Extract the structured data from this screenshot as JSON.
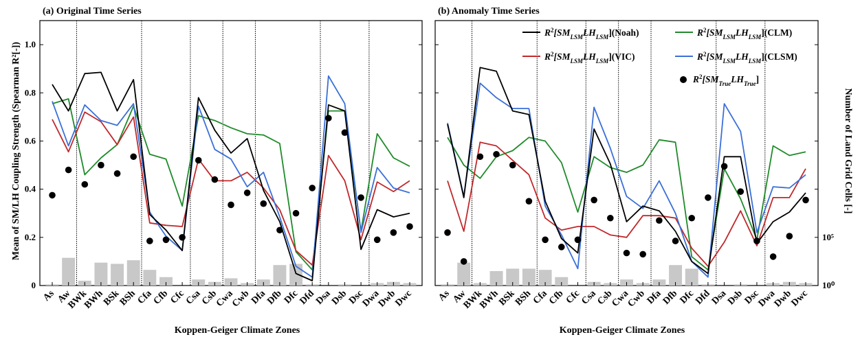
{
  "chart_data": {
    "categories": [
      "As",
      "Aw",
      "BWk",
      "BWh",
      "BSk",
      "BSh",
      "Cfa",
      "Cfb",
      "Cfc",
      "Csa",
      "Csb",
      "Cwa",
      "Cwb",
      "Dfa",
      "Dfb",
      "Dfc",
      "Dfd",
      "Dsa",
      "Dsb",
      "Dsc",
      "Dwa",
      "Dwb",
      "Dwc"
    ],
    "group_separators_after_index": [
      1,
      5,
      8,
      10,
      12,
      16,
      19
    ],
    "xlabel": "Koppen-Geiger Climate Zones",
    "ylabel": "Mean of SM/LH Coupling Strength (Spearman R²[-])",
    "ylabel_right": "Number of Land Grid Cells [-]",
    "y_ticks": [
      "0",
      "0.2",
      "0.4",
      "0.6",
      "0.8",
      "1.0"
    ],
    "ylim": [
      0,
      1.1
    ],
    "right_ticks": [
      "10⁰",
      "10⁵"
    ],
    "series_colors": {
      "noah": "#000000",
      "vic": "#c0282a",
      "clm": "#1f8a2a",
      "clsm": "#3a6fd8",
      "obs": "#000000",
      "bars": "#c8c8c8"
    },
    "panels": [
      {
        "title": "(a) Original Time Series",
        "type": "line",
        "series": [
          {
            "key": "noah",
            "values": [
              0.835,
              0.725,
              0.88,
              0.885,
              0.725,
              0.855,
              0.295,
              0.23,
              0.145,
              0.78,
              0.645,
              0.55,
              0.61,
              0.395,
              0.265,
              0.05,
              0.02,
              0.75,
              0.725,
              0.15,
              0.315,
              0.285,
              0.3
            ]
          },
          {
            "key": "vic",
            "values": [
              0.69,
              0.555,
              0.72,
              0.68,
              0.585,
              0.7,
              0.26,
              0.25,
              0.245,
              0.525,
              0.435,
              0.435,
              0.47,
              0.405,
              0.315,
              0.145,
              0.085,
              0.54,
              0.435,
              0.19,
              0.43,
              0.39,
              0.435
            ]
          },
          {
            "key": "clm",
            "values": [
              0.755,
              0.775,
              0.46,
              0.53,
              0.585,
              0.745,
              0.545,
              0.525,
              0.33,
              0.705,
              0.685,
              0.655,
              0.63,
              0.625,
              0.59,
              0.14,
              0.065,
              0.725,
              0.725,
              0.225,
              0.63,
              0.53,
              0.495
            ]
          },
          {
            "key": "clsm",
            "values": [
              0.765,
              0.58,
              0.75,
              0.685,
              0.665,
              0.755,
              0.305,
              0.205,
              0.145,
              0.745,
              0.565,
              0.525,
              0.41,
              0.47,
              0.285,
              0.08,
              0.035,
              0.87,
              0.755,
              0.22,
              0.49,
              0.405,
              0.385
            ]
          }
        ],
        "obs": {
          "x": [
            0,
            1,
            2,
            3,
            4,
            5,
            6,
            7,
            8,
            9,
            10,
            11,
            12,
            13,
            14,
            15,
            16,
            17,
            18,
            19,
            20,
            21,
            22
          ],
          "values": [
            0.375,
            0.48,
            0.42,
            0.5,
            0.465,
            0.535,
            0.185,
            0.19,
            0.2,
            0.52,
            0.44,
            0.335,
            0.385,
            0.34,
            0.23,
            0.3,
            0.405,
            0.695,
            0.635,
            0.365,
            0.19,
            0.22,
            0.245
          ]
        },
        "bars": [
          0.005,
          0.115,
          0.02,
          0.095,
          0.09,
          0.105,
          0.065,
          0.035,
          0.0,
          0.025,
          0.015,
          0.03,
          0.01,
          0.025,
          0.085,
          0.09,
          0.005,
          0.0,
          0.005,
          0.0,
          0.01,
          0.015,
          0.01
        ]
      },
      {
        "title": "(b) Anomaly Time Series",
        "type": "line",
        "series": [
          {
            "key": "noah",
            "values": [
              0.67,
              0.365,
              0.905,
              0.89,
              0.725,
              0.71,
              0.35,
              0.195,
              0.135,
              0.65,
              0.505,
              0.265,
              0.33,
              0.31,
              0.225,
              0.1,
              0.05,
              0.535,
              0.535,
              0.175,
              0.265,
              0.305,
              0.385
            ]
          },
          {
            "key": "vic",
            "values": [
              0.435,
              0.225,
              0.595,
              0.58,
              0.52,
              0.46,
              0.28,
              0.23,
              0.245,
              0.245,
              0.21,
              0.2,
              0.29,
              0.29,
              0.28,
              0.155,
              0.08,
              0.18,
              0.31,
              0.165,
              0.365,
              0.365,
              0.485
            ]
          },
          {
            "key": "clm",
            "values": [
              0.615,
              0.5,
              0.445,
              0.535,
              0.56,
              0.615,
              0.6,
              0.51,
              0.305,
              0.535,
              0.49,
              0.47,
              0.5,
              0.605,
              0.595,
              0.12,
              0.065,
              0.485,
              0.36,
              0.19,
              0.58,
              0.54,
              0.555
            ]
          },
          {
            "key": "clsm",
            "values": [
              0.675,
              0.37,
              0.84,
              0.78,
              0.735,
              0.735,
              0.33,
              0.21,
              0.07,
              0.74,
              0.57,
              0.37,
              0.32,
              0.435,
              0.3,
              0.1,
              0.035,
              0.755,
              0.64,
              0.22,
              0.41,
              0.405,
              0.46
            ]
          }
        ],
        "obs": {
          "x": [
            0,
            1,
            2,
            3,
            4,
            5,
            6,
            7,
            8,
            9,
            10,
            11,
            12,
            13,
            14,
            15,
            16,
            17,
            18,
            19,
            20,
            21,
            22
          ],
          "values": [
            0.22,
            0.1,
            0.535,
            0.545,
            0.5,
            0.35,
            0.19,
            0.16,
            0.19,
            0.355,
            0.28,
            0.135,
            0.13,
            0.27,
            0.185,
            0.28,
            0.365,
            0.495,
            0.39,
            0.185,
            0.12,
            0.205,
            0.355
          ]
        },
        "bars": [
          0.005,
          0.095,
          0.01,
          0.06,
          0.07,
          0.07,
          0.065,
          0.035,
          0.0,
          0.015,
          0.01,
          0.025,
          0.01,
          0.025,
          0.085,
          0.07,
          0.005,
          0.0,
          0.005,
          0.0,
          0.01,
          0.015,
          0.01
        ]
      }
    ],
    "legend": [
      {
        "key": "noah",
        "label": "(Noah)"
      },
      {
        "key": "clm",
        "label": "(CLM)"
      },
      {
        "key": "vic",
        "label": "(VIC)"
      },
      {
        "key": "clsm",
        "label": "(CLSM)"
      },
      {
        "key": "obs",
        "label": ""
      }
    ]
  }
}
